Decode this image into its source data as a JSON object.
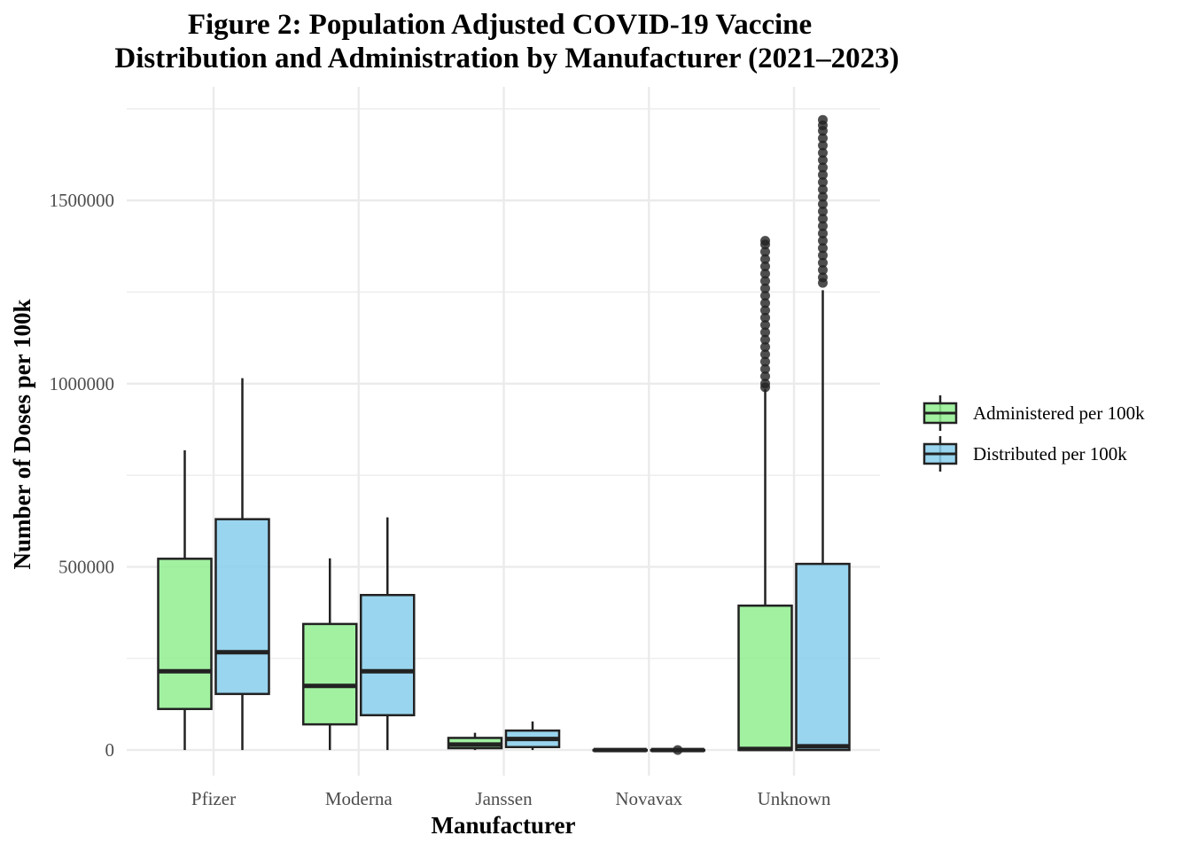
{
  "chart_data": {
    "type": "boxplot",
    "title": "Figure 2: Population Adjusted COVID-19 Vaccine",
    "title_line2": "Distribution and Administration by Manufacturer (2021–2023)",
    "xlabel": "Manufacturer",
    "ylabel": "Number of Doses per 100k",
    "categories": [
      "Pfizer",
      "Moderna",
      "Janssen",
      "Novavax",
      "Unknown"
    ],
    "ylim": [
      -70000,
      1810000
    ],
    "y_ticks": [
      0,
      500000,
      1000000,
      1500000
    ],
    "y_tick_labels": [
      "0",
      "500000",
      "1000000",
      "1500000"
    ],
    "grid": true,
    "legend_position": "right",
    "series": [
      {
        "name": "Administered per 100k",
        "color": "#90EE90",
        "boxes": [
          {
            "min": 0,
            "q1": 112000,
            "median": 215000,
            "q3": 522000,
            "max": 818000,
            "outliers": []
          },
          {
            "min": 0,
            "q1": 70000,
            "median": 175000,
            "q3": 344000,
            "max": 523000,
            "outliers": []
          },
          {
            "min": 0,
            "q1": 5000,
            "median": 15000,
            "q3": 33000,
            "max": 47000,
            "outliers": []
          },
          {
            "min": 0,
            "q1": 0,
            "median": 0,
            "q3": 0,
            "max": 0,
            "outliers": []
          },
          {
            "min": 0,
            "q1": 0,
            "median": 3000,
            "q3": 394000,
            "max": 985000,
            "outliers": [
              990000,
              1000000,
              1020000,
              1040000,
              1060000,
              1080000,
              1100000,
              1120000,
              1140000,
              1160000,
              1180000,
              1200000,
              1220000,
              1240000,
              1260000,
              1280000,
              1300000,
              1320000,
              1340000,
              1360000,
              1380000,
              1390000
            ]
          }
        ]
      },
      {
        "name": "Distributed per 100k",
        "color": "#87CEEB",
        "boxes": [
          {
            "min": 0,
            "q1": 153000,
            "median": 267000,
            "q3": 630000,
            "max": 1015000,
            "outliers": []
          },
          {
            "min": 0,
            "q1": 95000,
            "median": 215000,
            "q3": 423000,
            "max": 635000,
            "outliers": []
          },
          {
            "min": 0,
            "q1": 8000,
            "median": 30000,
            "q3": 53000,
            "max": 78000,
            "outliers": []
          },
          {
            "min": 0,
            "q1": 0,
            "median": 0,
            "q3": 0,
            "max": 0,
            "outliers": [
              0
            ]
          },
          {
            "min": 0,
            "q1": 0,
            "median": 10000,
            "q3": 508000,
            "max": 1255000,
            "outliers": [
              1275000,
              1290000,
              1310000,
              1330000,
              1350000,
              1370000,
              1390000,
              1410000,
              1430000,
              1450000,
              1470000,
              1490000,
              1510000,
              1530000,
              1550000,
              1570000,
              1590000,
              1610000,
              1630000,
              1650000,
              1670000,
              1690000,
              1705000,
              1720000
            ]
          }
        ]
      }
    ]
  }
}
